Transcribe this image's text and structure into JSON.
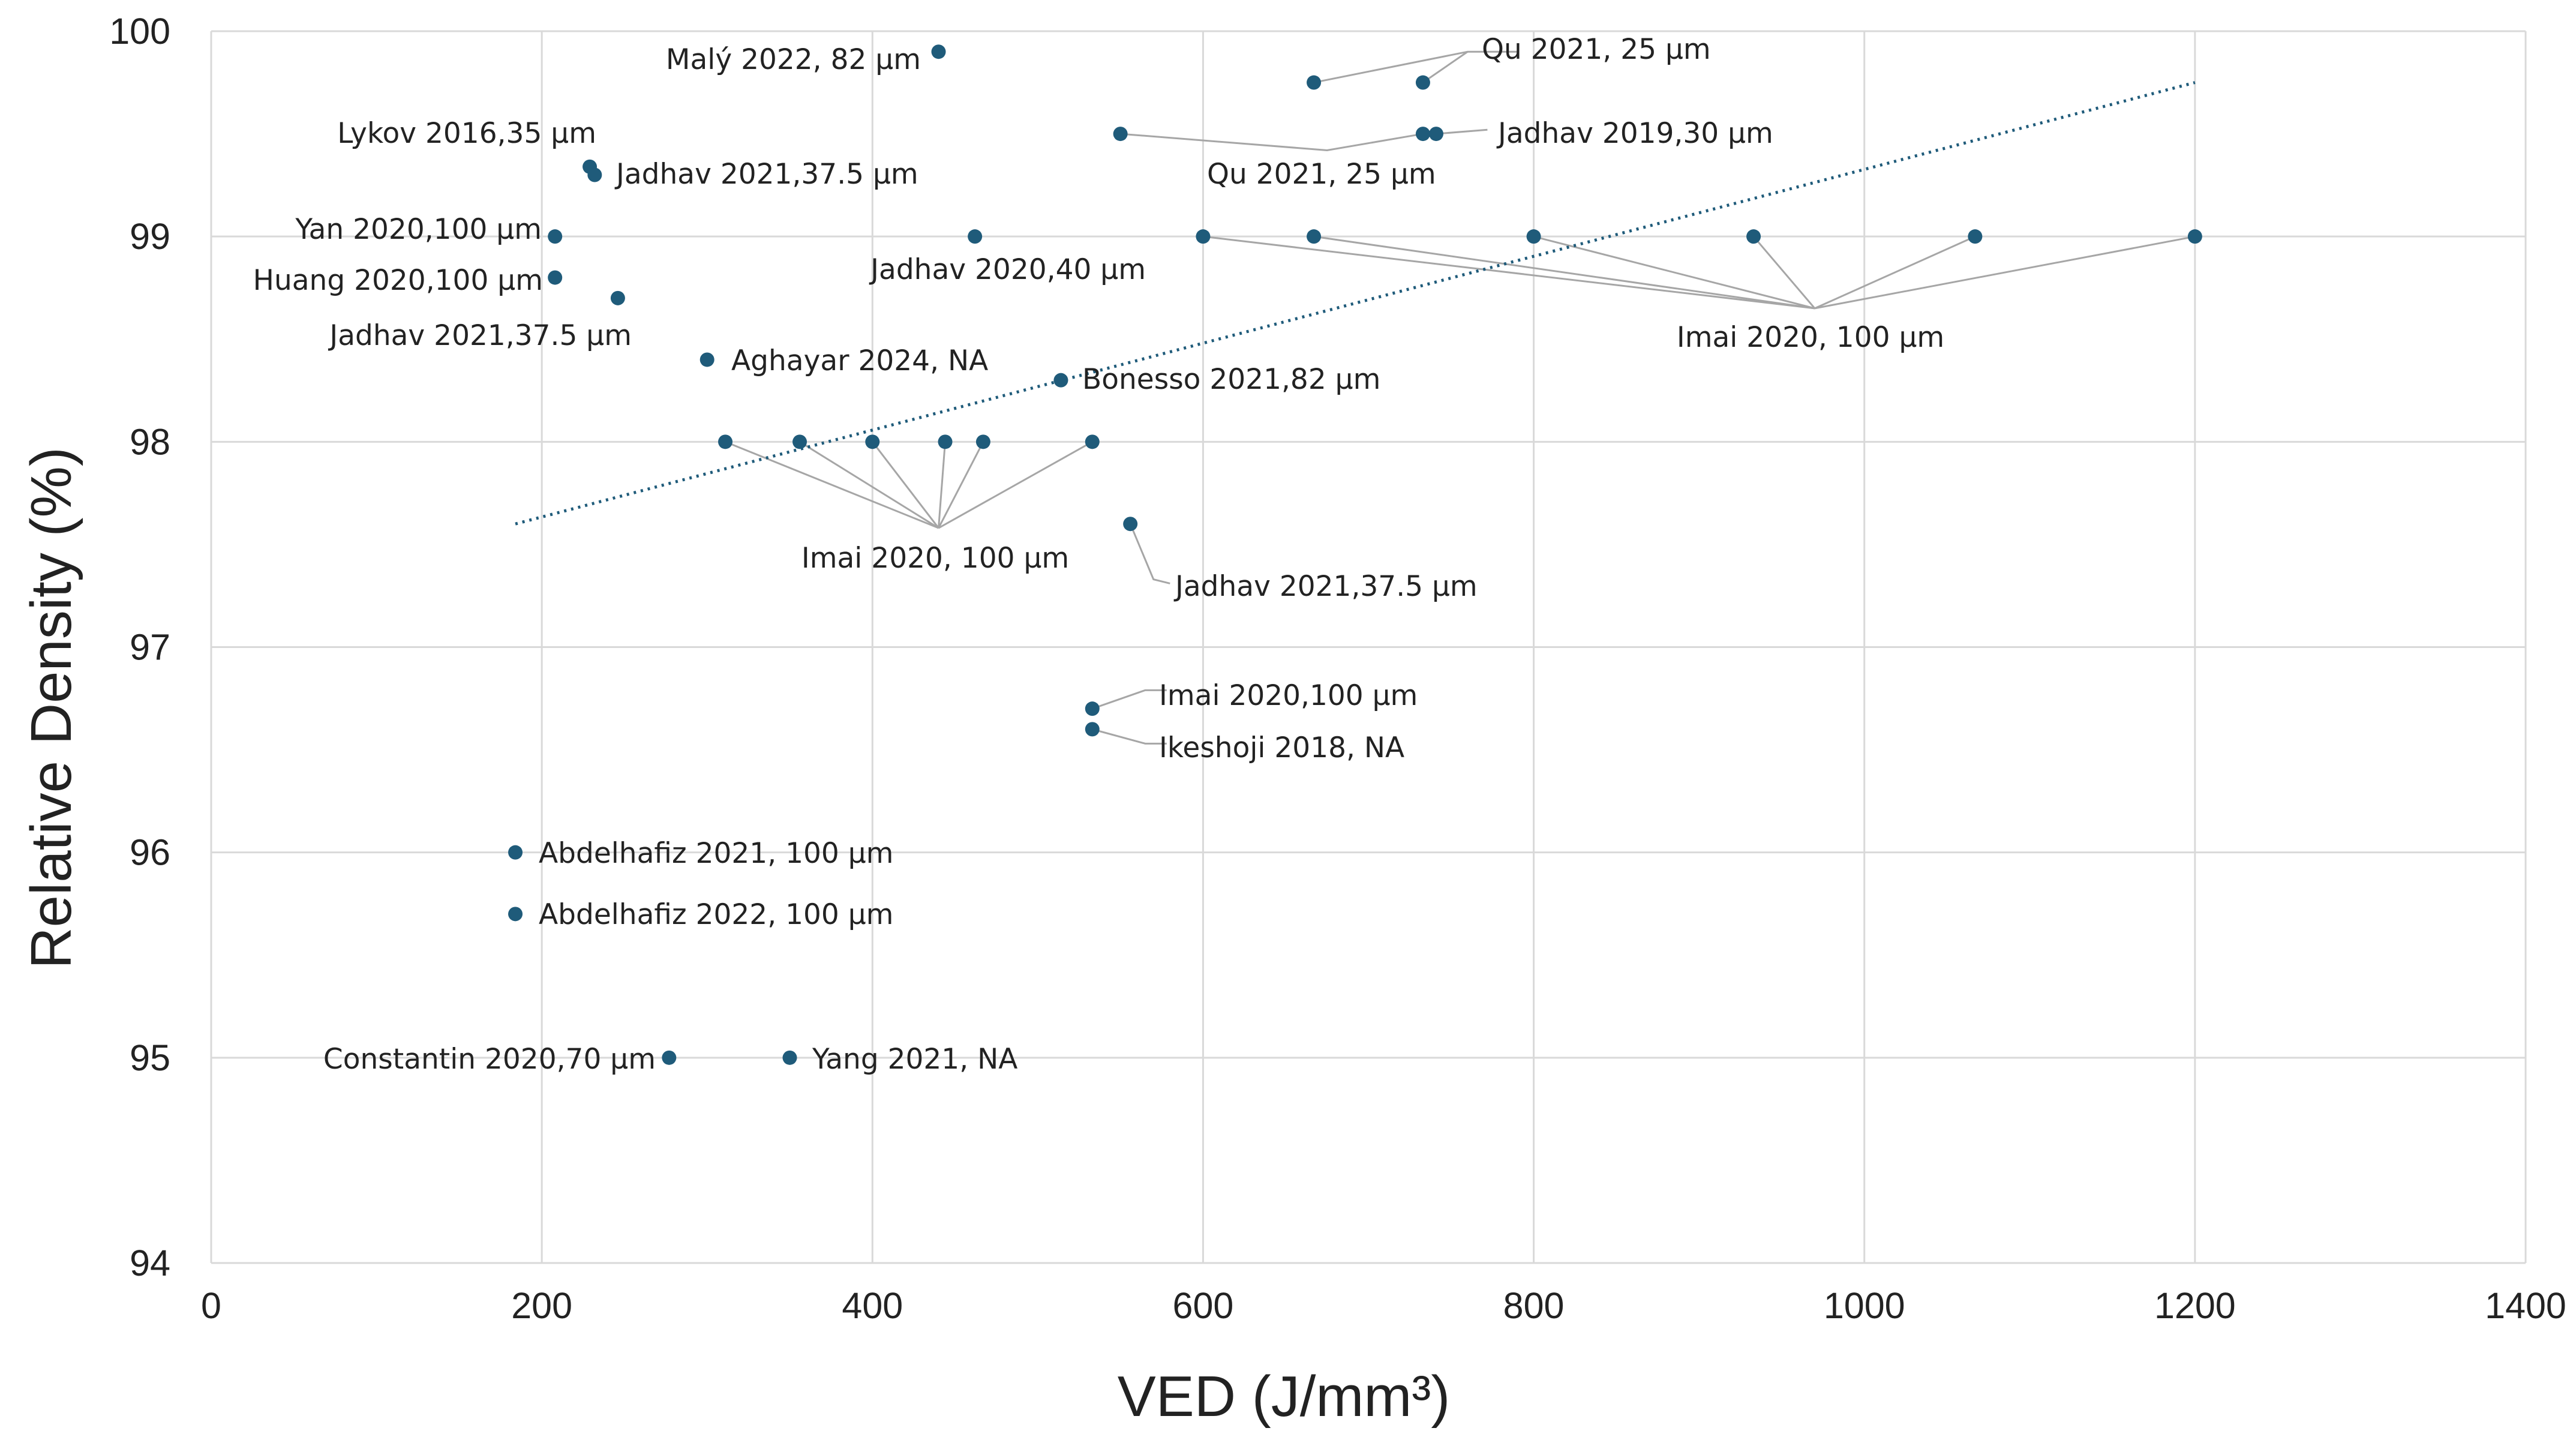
{
  "chart_data": {
    "type": "scatter",
    "title": "",
    "xlabel": "VED (J/mm³)",
    "ylabel": "Relative Density (%)",
    "xlim": [
      0,
      1400
    ],
    "ylim": [
      94,
      100
    ],
    "x_ticks": [
      0,
      200,
      400,
      600,
      800,
      1000,
      1200,
      1400
    ],
    "y_ticks": [
      94,
      95,
      96,
      97,
      98,
      99,
      100
    ],
    "grid": true,
    "colors": {
      "point": "#1f5b7a",
      "grid": "#d9d9d9",
      "leader": "#a6a6a6"
    },
    "points": [
      {
        "x": 440,
        "y": 99.9
      },
      {
        "x": 667,
        "y": 99.75
      },
      {
        "x": 733,
        "y": 99.75
      },
      {
        "x": 550,
        "y": 99.5
      },
      {
        "x": 733,
        "y": 99.5
      },
      {
        "x": 741,
        "y": 99.5
      },
      {
        "x": 229,
        "y": 99.34
      },
      {
        "x": 232,
        "y": 99.3
      },
      {
        "x": 208,
        "y": 99.0
      },
      {
        "x": 462,
        "y": 99.0
      },
      {
        "x": 600,
        "y": 99.0
      },
      {
        "x": 667,
        "y": 99.0
      },
      {
        "x": 800,
        "y": 99.0
      },
      {
        "x": 933,
        "y": 99.0
      },
      {
        "x": 1067,
        "y": 99.0
      },
      {
        "x": 1200,
        "y": 99.0
      },
      {
        "x": 208,
        "y": 98.8
      },
      {
        "x": 246,
        "y": 98.7
      },
      {
        "x": 300,
        "y": 98.4
      },
      {
        "x": 514,
        "y": 98.3
      },
      {
        "x": 311,
        "y": 98.0
      },
      {
        "x": 356,
        "y": 98.0
      },
      {
        "x": 400,
        "y": 98.0
      },
      {
        "x": 444,
        "y": 98.0
      },
      {
        "x": 467,
        "y": 98.0
      },
      {
        "x": 533,
        "y": 98.0
      },
      {
        "x": 556,
        "y": 97.6
      },
      {
        "x": 533,
        "y": 96.7
      },
      {
        "x": 533,
        "y": 96.6
      },
      {
        "x": 184,
        "y": 96.0
      },
      {
        "x": 184,
        "y": 95.7
      },
      {
        "x": 277,
        "y": 95.0
      },
      {
        "x": 350,
        "y": 95.0
      }
    ],
    "trendline": {
      "style": "dotted",
      "x": [
        184,
        1200
      ],
      "y": [
        97.6,
        99.75
      ]
    },
    "annotations": [
      {
        "text": "Malý 2022, 82 μm",
        "x": 440,
        "y": 99.9
      },
      {
        "text": "Qu 2021, 25 μm",
        "x": 667,
        "y": 99.75
      },
      {
        "text": "Jadhav 2019,30 μm",
        "x": 741,
        "y": 99.5
      },
      {
        "text": "Qu 2021, 25 μm",
        "x": 550,
        "y": 99.5
      },
      {
        "text": "Lykov 2016,35 μm",
        "x": 229,
        "y": 99.34
      },
      {
        "text": "Jadhav 2021,37.5 μm",
        "x": 232,
        "y": 99.3
      },
      {
        "text": "Yan 2020,100 μm",
        "x": 208,
        "y": 99.0
      },
      {
        "text": "Jadhav 2020,40 μm",
        "x": 462,
        "y": 99.0
      },
      {
        "text": "Huang 2020,100 μm",
        "x": 208,
        "y": 98.8
      },
      {
        "text": "Jadhav 2021,37.5 μm",
        "x": 246,
        "y": 98.7
      },
      {
        "text": "Imai 2020, 100 μm",
        "x": 933,
        "y": 99.0
      },
      {
        "text": "Aghayar 2024, NA",
        "x": 300,
        "y": 98.4
      },
      {
        "text": "Bonesso 2021,82 μm",
        "x": 514,
        "y": 98.3
      },
      {
        "text": "Imai 2020, 100 μm",
        "x": 444,
        "y": 98.0
      },
      {
        "text": "Jadhav 2021,37.5 μm",
        "x": 556,
        "y": 97.6
      },
      {
        "text": "Imai 2020,100 μm",
        "x": 533,
        "y": 96.7
      },
      {
        "text": "Ikeshoji 2018, NA",
        "x": 533,
        "y": 96.6
      },
      {
        "text": "Abdelhafiz 2021, 100 μm",
        "x": 184,
        "y": 96.0
      },
      {
        "text": "Abdelhafiz 2022, 100 μm",
        "x": 184,
        "y": 95.7
      },
      {
        "text": "Constantin 2020,70 μm",
        "x": 277,
        "y": 95.0
      },
      {
        "text": "Yang 2021, NA",
        "x": 350,
        "y": 95.0
      }
    ]
  }
}
